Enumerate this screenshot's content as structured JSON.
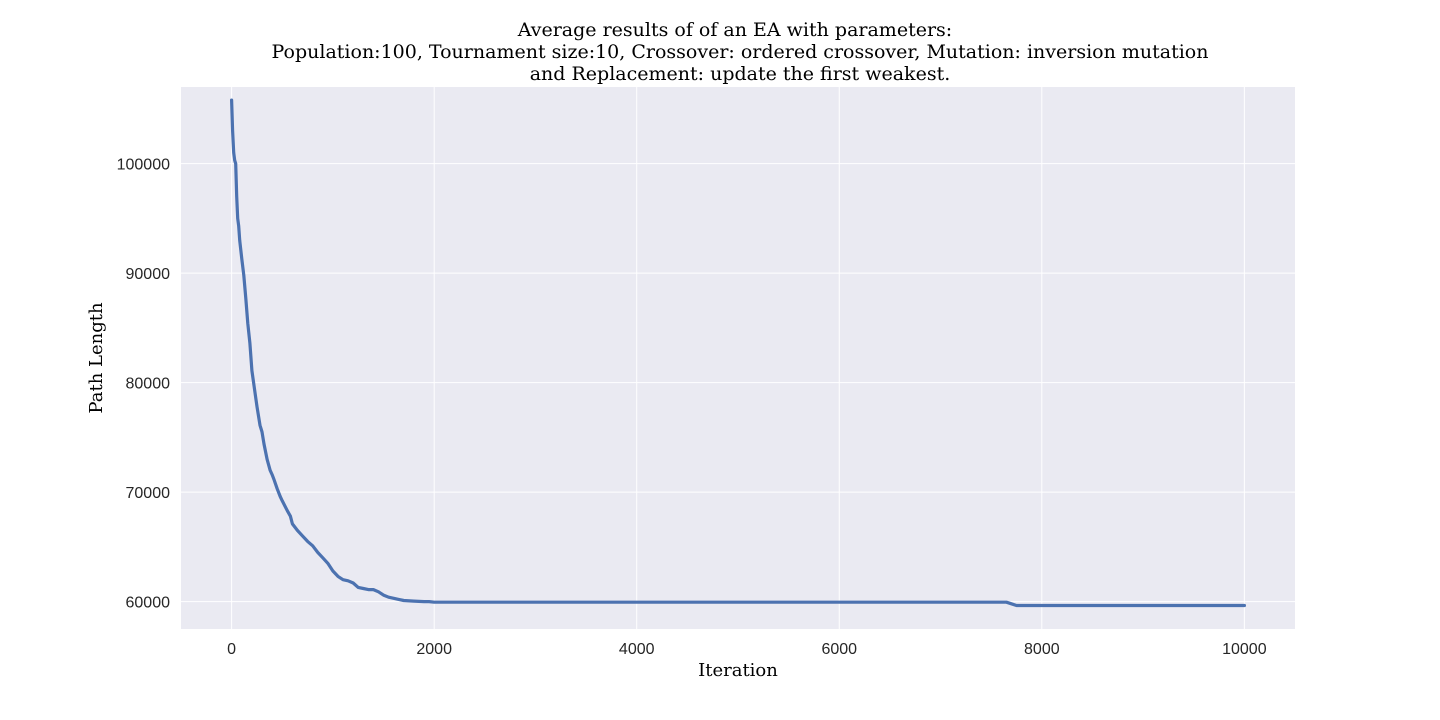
{
  "chart_data": {
    "type": "line",
    "title": [
      "Average results of of an EA with parameters:",
      "Population:100, Tournament size:10, Crossover: ordered crossover, Mutation: inversion mutation",
      "and Replacement: update the first weakest."
    ],
    "xlabel": "Iteration",
    "ylabel": "Path Length",
    "xlim": [
      -500,
      10500
    ],
    "ylim": [
      57500,
      107000
    ],
    "xticks": [
      0,
      2000,
      4000,
      6000,
      8000,
      10000
    ],
    "yticks": [
      60000,
      70000,
      80000,
      90000,
      100000
    ],
    "grid": true,
    "colors": {
      "series": "#4c72b0",
      "plot_background": "#eaeaf2",
      "grid": "#ffffff"
    },
    "series": [
      {
        "x": [
          0,
          10,
          20,
          30,
          40,
          50,
          60,
          70,
          80,
          100,
          120,
          140,
          160,
          180,
          200,
          220,
          250,
          280,
          300,
          320,
          350,
          380,
          400,
          420,
          450,
          480,
          500,
          550,
          580,
          600,
          650,
          700,
          750,
          800,
          850,
          900,
          950,
          1000,
          1050,
          1100,
          1150,
          1200,
          1250,
          1300,
          1350,
          1400,
          1450,
          1500,
          1550,
          1600,
          1650,
          1700,
          1800,
          1900,
          1950,
          2000,
          3000,
          4000,
          5000,
          6000,
          7000,
          7650,
          7700,
          7750,
          8000,
          9000,
          10000
        ],
        "y": [
          105800,
          103000,
          101000,
          100300,
          100000,
          97000,
          95000,
          94300,
          93000,
          91300,
          89800,
          87700,
          85400,
          83600,
          81100,
          79800,
          77800,
          76100,
          75500,
          74400,
          73000,
          72000,
          71600,
          71100,
          70300,
          69600,
          69200,
          68300,
          67800,
          67100,
          66500,
          66000,
          65500,
          65100,
          64500,
          64000,
          63500,
          62800,
          62300,
          62000,
          61900,
          61700,
          61300,
          61200,
          61100,
          61100,
          60900,
          60600,
          60400,
          60300,
          60200,
          60100,
          60050,
          60000,
          60000,
          59950,
          59950,
          59950,
          59950,
          59950,
          59950,
          59950,
          59800,
          59650,
          59650,
          59650,
          59650
        ]
      }
    ]
  }
}
